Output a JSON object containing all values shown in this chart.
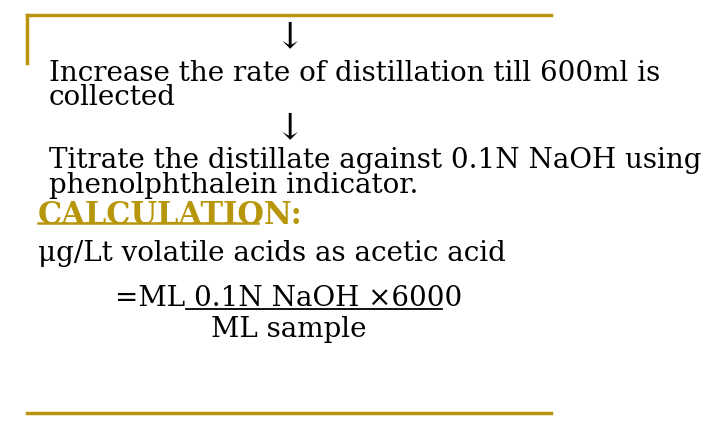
{
  "bg_color": "#ffffff",
  "border_color": "#b8960c",
  "text_color": "#000000",
  "gold_color": "#b8960c",
  "line1": "    Increase the rate of distillation till 600ml is",
  "line2": "collected",
  "line3": "    Titrate the distillate against 0.1N NaOH using",
  "line4": "phenolphthalein indicator.",
  "calc_label": "CALCULATION:",
  "line5": "μg/Lt volatile acids as acetic acid",
  "line6_num": "=ML 0.1N NaOH ×6000",
  "line6_den": "ML sample",
  "font_size_main": 20,
  "font_size_calc": 22,
  "font_size_arrow": 26
}
